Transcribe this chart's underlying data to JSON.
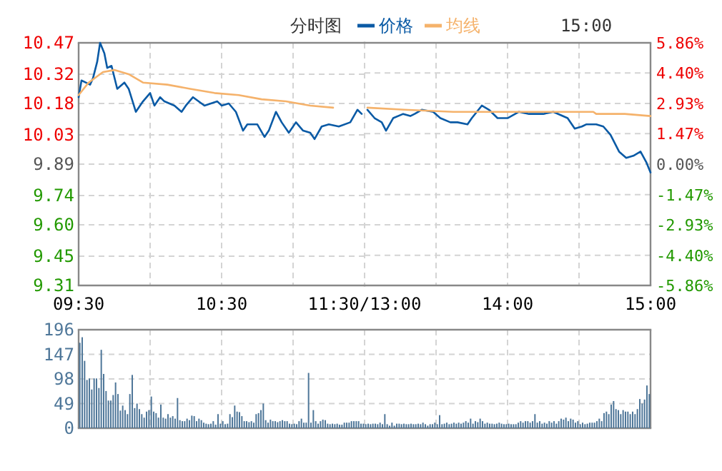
{
  "chart_data": [
    {
      "type": "line",
      "title": "分时图",
      "grid": true,
      "xlim": [
        9.5,
        11.5
      ],
      "xticks": [
        {
          "value": 9.5,
          "label": "09:30"
        },
        {
          "value": 10,
          "label": null
        },
        {
          "value": 10.5,
          "label": "10:30"
        },
        {
          "value": 11,
          "label": null
        },
        {
          "value": 11.5,
          "label": "11:30/13:00"
        }
      ],
      "ylim": [
        9.31,
        10.47
      ],
      "yticks": [
        {
          "value": 9.31,
          "label": "9.31"
        },
        {
          "value": 9.45,
          "label": "9.45"
        },
        {
          "value": 9.6,
          "label": "9.60"
        },
        {
          "value": 9.74,
          "label": "9.74"
        },
        {
          "value": 9.89,
          "label": "9.89"
        },
        {
          "value": 10.03,
          "label": "10.03"
        },
        {
          "value": 10.18,
          "label": "10.18"
        },
        {
          "value": 10.32,
          "label": "10.32"
        },
        {
          "value": 10.47,
          "label": "10.47"
        }
      ],
      "series": [
        {
          "color": "#0a5aa5",
          "x": [
            9.5,
            9.52,
            9.55,
            9.58,
            9.6,
            9.63,
            9.65,
            9.68,
            9.7,
            9.73,
            9.77,
            9.82,
            9.85,
            9.9,
            9.95,
            10,
            10.03,
            10.07,
            10.1,
            10.17,
            10.22,
            10.25,
            10.3,
            10.38,
            10.47,
            10.5,
            10.55,
            10.6,
            10.65,
            10.68,
            10.75,
            10.8,
            10.83,
            10.88,
            10.92,
            10.97,
            11.02,
            11.07,
            11.12,
            11.15,
            11.2,
            11.25,
            11.32,
            11.4,
            11.45,
            11.48
          ],
          "values": [
            10.21,
            10.29,
            10.28,
            10.27,
            10.3,
            10.38,
            10.47,
            10.42,
            10.35,
            10.36,
            10.25,
            10.28,
            10.25,
            10.14,
            10.19,
            10.23,
            10.17,
            10.21,
            10.19,
            10.17,
            10.14,
            10.17,
            10.21,
            10.17,
            10.19,
            10.17,
            10.18,
            10.14,
            10.05,
            10.08,
            10.08,
            10.02,
            10.05,
            10.14,
            10.09,
            10.04,
            10.09,
            10.05,
            10.04,
            10.01,
            10.07,
            10.08,
            10.07,
            10.09,
            10.15,
            10.13
          ]
        },
        {
          "color": "#f5b26b",
          "x": [
            9.5,
            9.57,
            9.67,
            9.75,
            9.85,
            9.95,
            10.12,
            10.28,
            10.45,
            10.62,
            10.78,
            10.95,
            11.12,
            11.28
          ],
          "values": [
            10.22,
            10.28,
            10.33,
            10.34,
            10.32,
            10.28,
            10.27,
            10.25,
            10.23,
            10.22,
            10.2,
            10.19,
            10.17,
            10.16
          ]
        }
      ]
    },
    {
      "type": "line",
      "annotations": [
        "15:00"
      ],
      "legend": "top",
      "grid": true,
      "xlim": [
        13,
        15
      ],
      "xticks": [
        {
          "value": 13,
          "label": null
        },
        {
          "value": 13.5,
          "label": null
        },
        {
          "value": 14,
          "label": "14:00"
        },
        {
          "value": 14.5,
          "label": null
        },
        {
          "value": 15,
          "label": "15:00"
        }
      ],
      "ylim": [
        9.31,
        10.47
      ],
      "y2lim": [
        -5.86,
        5.86
      ],
      "y2ticks": [
        {
          "value": -5.86,
          "label": "-5.86%"
        },
        {
          "value": -4.4,
          "label": "-4.40%"
        },
        {
          "value": -2.93,
          "label": "-2.93%"
        },
        {
          "value": -1.47,
          "label": "-1.47%"
        },
        {
          "value": 0,
          "label": "0.00%"
        },
        {
          "value": 1.47,
          "label": "1.47%"
        },
        {
          "value": 2.93,
          "label": "2.93%"
        },
        {
          "value": 4.4,
          "label": "4.40%"
        },
        {
          "value": 5.86,
          "label": "5.86%"
        }
      ],
      "series": [
        {
          "name": "价格",
          "color": "#0a5aa5",
          "x": [
            13.02,
            13.07,
            13.12,
            13.15,
            13.2,
            13.27,
            13.32,
            13.35,
            13.4,
            13.48,
            13.53,
            13.6,
            13.65,
            13.72,
            13.75,
            13.82,
            13.87,
            13.93,
            14,
            14.08,
            14.15,
            14.25,
            14.32,
            14.42,
            14.47,
            14.52,
            14.55,
            14.62,
            14.67,
            14.72,
            14.78,
            14.83,
            14.88,
            14.93,
            14.97,
            15
          ],
          "values": [
            10.15,
            10.11,
            10.09,
            10.05,
            10.11,
            10.13,
            10.12,
            10.13,
            10.15,
            10.14,
            10.11,
            10.09,
            10.09,
            10.08,
            10.11,
            10.17,
            10.15,
            10.11,
            10.11,
            10.14,
            10.13,
            10.13,
            10.14,
            10.11,
            10.06,
            10.07,
            10.08,
            10.08,
            10.07,
            10.03,
            9.95,
            9.92,
            9.93,
            9.95,
            9.9,
            9.85
          ]
        },
        {
          "name": "均线",
          "color": "#f5b26b",
          "x": [
            13.02,
            13.28,
            13.62,
            13.95,
            14.28,
            14.6,
            14.62,
            14.82,
            15
          ],
          "values": [
            10.16,
            10.15,
            10.14,
            10.14,
            10.14,
            10.14,
            10.13,
            10.13,
            10.12
          ]
        }
      ]
    },
    {
      "type": "bar",
      "grid": true,
      "tick_labels": "y",
      "color": "#4f7799",
      "categories": [
        null,
        null,
        null,
        null,
        null,
        null,
        null,
        null,
        null,
        null,
        null,
        null,
        null,
        null,
        null,
        null,
        null,
        null,
        null,
        null,
        null,
        null,
        null,
        null,
        null,
        null,
        null,
        null,
        null,
        null,
        null,
        null,
        null,
        null,
        null,
        null,
        null,
        null,
        null,
        null,
        null,
        null,
        null,
        null,
        null,
        null,
        null,
        null,
        null,
        null,
        null,
        null,
        null,
        null,
        null,
        null,
        null,
        null,
        null,
        null,
        null,
        null,
        null,
        null,
        null,
        null,
        null,
        null,
        null,
        null,
        null,
        null,
        null,
        null,
        null,
        null,
        null,
        null,
        null,
        null,
        null,
        null,
        null,
        null,
        null,
        null,
        null,
        null,
        null,
        null,
        null,
        null,
        null,
        null,
        null,
        null,
        null,
        null,
        null,
        null,
        null,
        null,
        null,
        null,
        null,
        null,
        null,
        null,
        null,
        null,
        null,
        null,
        null,
        null,
        null,
        null,
        null,
        null,
        null,
        null,
        null,
        null,
        null,
        null,
        null,
        null,
        null,
        null,
        null,
        null,
        null,
        null,
        null,
        null,
        null,
        null,
        null,
        null,
        null,
        null,
        null,
        null,
        null,
        null,
        null,
        null,
        null,
        null,
        null,
        null,
        null,
        null,
        null,
        null,
        null,
        null,
        null,
        null,
        null,
        null,
        null,
        null,
        null,
        null,
        null,
        null,
        null,
        null,
        null,
        null,
        null,
        null,
        null,
        null,
        null,
        null,
        null,
        null,
        null,
        null,
        null,
        null,
        null,
        null,
        null,
        null,
        null,
        null,
        null,
        null,
        null,
        null,
        null,
        null,
        null,
        null,
        null,
        null,
        null,
        null,
        null,
        null,
        null,
        null,
        null,
        null,
        null,
        null,
        null,
        null,
        null,
        null,
        null,
        null,
        null,
        null,
        null,
        null,
        null,
        null,
        null,
        null,
        null,
        null,
        null,
        null,
        null,
        null,
        null,
        null,
        null,
        null,
        null,
        null,
        null,
        null,
        null,
        null,
        null,
        null
      ],
      "ylim": [
        0,
        196
      ],
      "yticks": [
        0,
        49,
        98,
        147,
        196
      ],
      "values": [
        170,
        181,
        134,
        96,
        99,
        77,
        99,
        99,
        80,
        156,
        108,
        74,
        55,
        55,
        66,
        91,
        68,
        35,
        45,
        36,
        28,
        68,
        106,
        40,
        49,
        38,
        28,
        21,
        33,
        36,
        63,
        33,
        30,
        21,
        47,
        21,
        19,
        28,
        21,
        24,
        19,
        60,
        16,
        14,
        14,
        19,
        16,
        25,
        24,
        14,
        19,
        16,
        11,
        9,
        8,
        9,
        14,
        7,
        28,
        9,
        14,
        8,
        9,
        28,
        22,
        45,
        33,
        32,
        24,
        14,
        14,
        12,
        14,
        11,
        28,
        30,
        36,
        49,
        16,
        11,
        17,
        14,
        14,
        12,
        14,
        16,
        14,
        14,
        9,
        8,
        9,
        8,
        14,
        19,
        11,
        11,
        110,
        11,
        36,
        14,
        9,
        14,
        17,
        16,
        9,
        8,
        9,
        8,
        9,
        7,
        7,
        11,
        11,
        11,
        14,
        14,
        14,
        14,
        9,
        9,
        8,
        9,
        8,
        9,
        9,
        8,
        11,
        8,
        28,
        8,
        5,
        11,
        5,
        9,
        9,
        8,
        9,
        8,
        8,
        9,
        8,
        8,
        9,
        8,
        11,
        8,
        5,
        8,
        8,
        11,
        8,
        26,
        8,
        9,
        11,
        8,
        9,
        11,
        9,
        11,
        9,
        11,
        14,
        11,
        19,
        9,
        14,
        12,
        19,
        14,
        9,
        11,
        9,
        9,
        8,
        9,
        11,
        9,
        8,
        8,
        9,
        8,
        8,
        8,
        11,
        14,
        11,
        14,
        14,
        11,
        14,
        28,
        11,
        14,
        9,
        11,
        9,
        14,
        11,
        14,
        9,
        14,
        19,
        17,
        21,
        14,
        19,
        17,
        11,
        14,
        8,
        11,
        8,
        9,
        11,
        11,
        11,
        14,
        19,
        14,
        30,
        33,
        28,
        47,
        54,
        38,
        36,
        28,
        36,
        33,
        33,
        28,
        33,
        28,
        38,
        58,
        49,
        57,
        85,
        68
      ]
    }
  ]
}
